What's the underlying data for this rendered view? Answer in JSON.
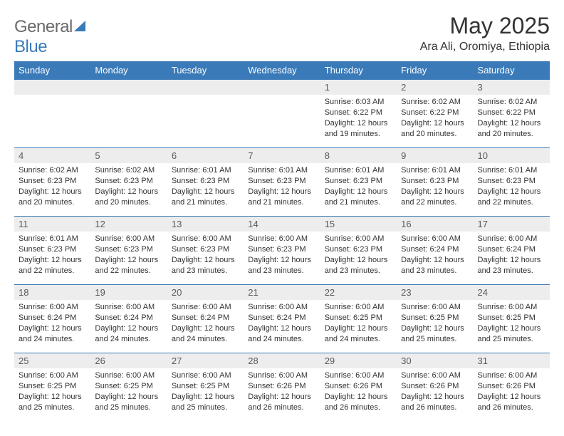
{
  "brand": {
    "part1": "General",
    "part2": "Blue"
  },
  "title": "May 2025",
  "location": "Ara Ali, Oromiya, Ethiopia",
  "colors": {
    "header_bg": "#3a7ab8",
    "daynum_bg": "#ededed",
    "text": "#333333",
    "logo_gray": "#6a6a6a"
  },
  "weekdays": [
    "Sunday",
    "Monday",
    "Tuesday",
    "Wednesday",
    "Thursday",
    "Friday",
    "Saturday"
  ],
  "weeks": [
    [
      {
        "n": "",
        "sr": "",
        "ss": "",
        "dl": ""
      },
      {
        "n": "",
        "sr": "",
        "ss": "",
        "dl": ""
      },
      {
        "n": "",
        "sr": "",
        "ss": "",
        "dl": ""
      },
      {
        "n": "",
        "sr": "",
        "ss": "",
        "dl": ""
      },
      {
        "n": "1",
        "sr": "Sunrise: 6:03 AM",
        "ss": "Sunset: 6:22 PM",
        "dl": "Daylight: 12 hours and 19 minutes."
      },
      {
        "n": "2",
        "sr": "Sunrise: 6:02 AM",
        "ss": "Sunset: 6:22 PM",
        "dl": "Daylight: 12 hours and 20 minutes."
      },
      {
        "n": "3",
        "sr": "Sunrise: 6:02 AM",
        "ss": "Sunset: 6:22 PM",
        "dl": "Daylight: 12 hours and 20 minutes."
      }
    ],
    [
      {
        "n": "4",
        "sr": "Sunrise: 6:02 AM",
        "ss": "Sunset: 6:23 PM",
        "dl": "Daylight: 12 hours and 20 minutes."
      },
      {
        "n": "5",
        "sr": "Sunrise: 6:02 AM",
        "ss": "Sunset: 6:23 PM",
        "dl": "Daylight: 12 hours and 20 minutes."
      },
      {
        "n": "6",
        "sr": "Sunrise: 6:01 AM",
        "ss": "Sunset: 6:23 PM",
        "dl": "Daylight: 12 hours and 21 minutes."
      },
      {
        "n": "7",
        "sr": "Sunrise: 6:01 AM",
        "ss": "Sunset: 6:23 PM",
        "dl": "Daylight: 12 hours and 21 minutes."
      },
      {
        "n": "8",
        "sr": "Sunrise: 6:01 AM",
        "ss": "Sunset: 6:23 PM",
        "dl": "Daylight: 12 hours and 21 minutes."
      },
      {
        "n": "9",
        "sr": "Sunrise: 6:01 AM",
        "ss": "Sunset: 6:23 PM",
        "dl": "Daylight: 12 hours and 22 minutes."
      },
      {
        "n": "10",
        "sr": "Sunrise: 6:01 AM",
        "ss": "Sunset: 6:23 PM",
        "dl": "Daylight: 12 hours and 22 minutes."
      }
    ],
    [
      {
        "n": "11",
        "sr": "Sunrise: 6:01 AM",
        "ss": "Sunset: 6:23 PM",
        "dl": "Daylight: 12 hours and 22 minutes."
      },
      {
        "n": "12",
        "sr": "Sunrise: 6:00 AM",
        "ss": "Sunset: 6:23 PM",
        "dl": "Daylight: 12 hours and 22 minutes."
      },
      {
        "n": "13",
        "sr": "Sunrise: 6:00 AM",
        "ss": "Sunset: 6:23 PM",
        "dl": "Daylight: 12 hours and 23 minutes."
      },
      {
        "n": "14",
        "sr": "Sunrise: 6:00 AM",
        "ss": "Sunset: 6:23 PM",
        "dl": "Daylight: 12 hours and 23 minutes."
      },
      {
        "n": "15",
        "sr": "Sunrise: 6:00 AM",
        "ss": "Sunset: 6:23 PM",
        "dl": "Daylight: 12 hours and 23 minutes."
      },
      {
        "n": "16",
        "sr": "Sunrise: 6:00 AM",
        "ss": "Sunset: 6:24 PM",
        "dl": "Daylight: 12 hours and 23 minutes."
      },
      {
        "n": "17",
        "sr": "Sunrise: 6:00 AM",
        "ss": "Sunset: 6:24 PM",
        "dl": "Daylight: 12 hours and 23 minutes."
      }
    ],
    [
      {
        "n": "18",
        "sr": "Sunrise: 6:00 AM",
        "ss": "Sunset: 6:24 PM",
        "dl": "Daylight: 12 hours and 24 minutes."
      },
      {
        "n": "19",
        "sr": "Sunrise: 6:00 AM",
        "ss": "Sunset: 6:24 PM",
        "dl": "Daylight: 12 hours and 24 minutes."
      },
      {
        "n": "20",
        "sr": "Sunrise: 6:00 AM",
        "ss": "Sunset: 6:24 PM",
        "dl": "Daylight: 12 hours and 24 minutes."
      },
      {
        "n": "21",
        "sr": "Sunrise: 6:00 AM",
        "ss": "Sunset: 6:24 PM",
        "dl": "Daylight: 12 hours and 24 minutes."
      },
      {
        "n": "22",
        "sr": "Sunrise: 6:00 AM",
        "ss": "Sunset: 6:25 PM",
        "dl": "Daylight: 12 hours and 24 minutes."
      },
      {
        "n": "23",
        "sr": "Sunrise: 6:00 AM",
        "ss": "Sunset: 6:25 PM",
        "dl": "Daylight: 12 hours and 25 minutes."
      },
      {
        "n": "24",
        "sr": "Sunrise: 6:00 AM",
        "ss": "Sunset: 6:25 PM",
        "dl": "Daylight: 12 hours and 25 minutes."
      }
    ],
    [
      {
        "n": "25",
        "sr": "Sunrise: 6:00 AM",
        "ss": "Sunset: 6:25 PM",
        "dl": "Daylight: 12 hours and 25 minutes."
      },
      {
        "n": "26",
        "sr": "Sunrise: 6:00 AM",
        "ss": "Sunset: 6:25 PM",
        "dl": "Daylight: 12 hours and 25 minutes."
      },
      {
        "n": "27",
        "sr": "Sunrise: 6:00 AM",
        "ss": "Sunset: 6:25 PM",
        "dl": "Daylight: 12 hours and 25 minutes."
      },
      {
        "n": "28",
        "sr": "Sunrise: 6:00 AM",
        "ss": "Sunset: 6:26 PM",
        "dl": "Daylight: 12 hours and 26 minutes."
      },
      {
        "n": "29",
        "sr": "Sunrise: 6:00 AM",
        "ss": "Sunset: 6:26 PM",
        "dl": "Daylight: 12 hours and 26 minutes."
      },
      {
        "n": "30",
        "sr": "Sunrise: 6:00 AM",
        "ss": "Sunset: 6:26 PM",
        "dl": "Daylight: 12 hours and 26 minutes."
      },
      {
        "n": "31",
        "sr": "Sunrise: 6:00 AM",
        "ss": "Sunset: 6:26 PM",
        "dl": "Daylight: 12 hours and 26 minutes."
      }
    ]
  ]
}
